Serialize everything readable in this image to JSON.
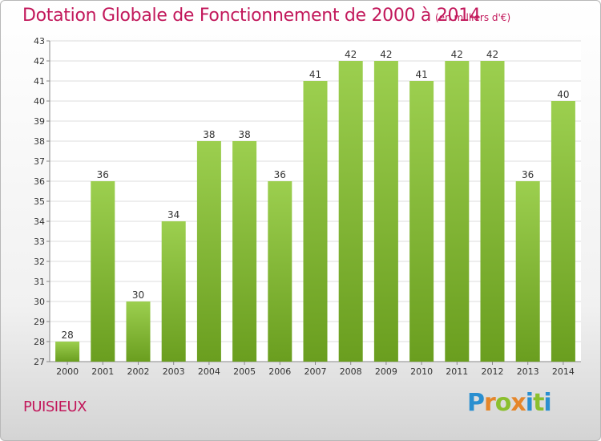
{
  "colors": {
    "title": "#c2185b",
    "bar_top": "#9ccf4f",
    "bar_bottom": "#6a9e1f",
    "grid": "#dcdcdc",
    "plot_bg": "#ffffff"
  },
  "logo": {
    "letters": [
      "P",
      "r",
      "o",
      "x",
      "i",
      "t",
      "i"
    ],
    "colors": [
      "#2a8fd0",
      "#e5862a",
      "#8bbf2e",
      "#e5862a",
      "#2a8fd0",
      "#8bbf2e",
      "#2a8fd0"
    ]
  },
  "place_name": "PUISIEUX",
  "chart_data": {
    "type": "bar",
    "title": "Dotation Globale de Fonctionnement de 2000 à 2014",
    "subtitle": "(en milliers d'€)",
    "categories": [
      "2000",
      "2001",
      "2002",
      "2003",
      "2004",
      "2005",
      "2006",
      "2007",
      "2008",
      "2009",
      "2010",
      "2011",
      "2012",
      "2013",
      "2014"
    ],
    "values": [
      28,
      36,
      30,
      34,
      38,
      38,
      36,
      41,
      42,
      42,
      41,
      42,
      42,
      36,
      40
    ],
    "ylim": [
      27,
      43
    ],
    "yticks": [
      27,
      28,
      29,
      30,
      31,
      32,
      33,
      34,
      35,
      36,
      37,
      38,
      39,
      40,
      41,
      42,
      43
    ],
    "grid": true,
    "xlabel": "",
    "ylabel": ""
  }
}
